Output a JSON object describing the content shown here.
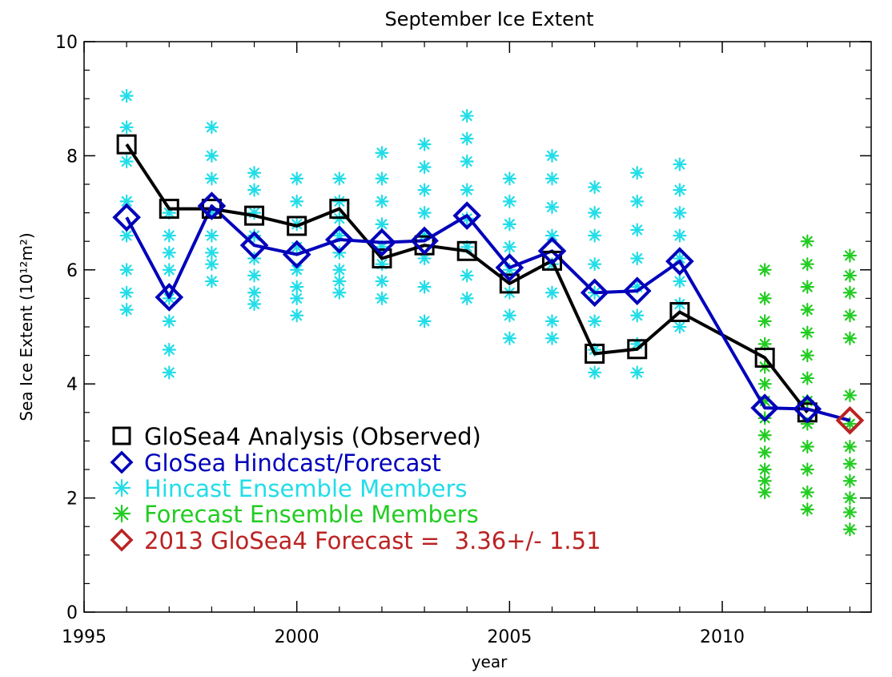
{
  "chart_data": {
    "type": "line",
    "title": "September Ice Extent",
    "xlabel": "year",
    "ylabel": "Sea Ice Extent (10¹²m²)",
    "xlim": [
      1995,
      2013.5
    ],
    "ylim": [
      0,
      10
    ],
    "x_ticks": [
      1995,
      2000,
      2005,
      2010
    ],
    "y_ticks": [
      0,
      2,
      4,
      6,
      8,
      10
    ],
    "grid": false,
    "legend_position": "bottom-left",
    "series": [
      {
        "name": "GloSea4 Analysis (Observed)",
        "color": "#000000",
        "marker": "square",
        "points": [
          [
            1996,
            8.2
          ],
          [
            1997,
            7.07
          ],
          [
            1998,
            7.07
          ],
          [
            1999,
            6.95
          ],
          [
            2000,
            6.77
          ],
          [
            2001,
            7.07
          ],
          [
            2002,
            6.2
          ],
          [
            2003,
            6.43
          ],
          [
            2004,
            6.33
          ],
          [
            2005,
            5.76
          ],
          [
            2006,
            6.16
          ],
          [
            2007,
            4.53
          ],
          [
            2008,
            4.61
          ],
          [
            2009,
            5.26
          ],
          [
            2011,
            4.46
          ],
          [
            2012,
            3.5
          ]
        ]
      },
      {
        "name": "GloSea Hindcast/Forecast",
        "color": "#0000bb",
        "marker": "diamond",
        "points": [
          [
            1996,
            6.92
          ],
          [
            1997,
            5.52
          ],
          [
            1998,
            7.12
          ],
          [
            1999,
            6.43
          ],
          [
            2000,
            6.27
          ],
          [
            2001,
            6.53
          ],
          [
            2002,
            6.48
          ],
          [
            2003,
            6.51
          ],
          [
            2004,
            6.95
          ],
          [
            2005,
            6.04
          ],
          [
            2006,
            6.33
          ],
          [
            2007,
            5.6
          ],
          [
            2008,
            5.63
          ],
          [
            2009,
            6.15
          ],
          [
            2011,
            3.58
          ],
          [
            2012,
            3.56
          ],
          [
            2013,
            3.36
          ]
        ]
      },
      {
        "name": "Hincast Ensemble Members",
        "color": "#22dde8",
        "marker": "asterisk",
        "points": [
          [
            1996,
            9.05
          ],
          [
            1996,
            8.5
          ],
          [
            1996,
            7.9
          ],
          [
            1996,
            7.2
          ],
          [
            1996,
            6.6
          ],
          [
            1996,
            6.0
          ],
          [
            1996,
            5.6
          ],
          [
            1996,
            5.3
          ],
          [
            1997,
            7.0
          ],
          [
            1997,
            6.6
          ],
          [
            1997,
            6.3
          ],
          [
            1997,
            6.0
          ],
          [
            1997,
            5.5
          ],
          [
            1997,
            5.1
          ],
          [
            1997,
            4.6
          ],
          [
            1997,
            4.2
          ],
          [
            1998,
            8.5
          ],
          [
            1998,
            8.0
          ],
          [
            1998,
            7.6
          ],
          [
            1998,
            7.0
          ],
          [
            1998,
            6.6
          ],
          [
            1998,
            6.3
          ],
          [
            1998,
            6.1
          ],
          [
            1998,
            5.8
          ],
          [
            1999,
            7.7
          ],
          [
            1999,
            7.4
          ],
          [
            1999,
            7.0
          ],
          [
            1999,
            6.6
          ],
          [
            1999,
            6.2
          ],
          [
            1999,
            5.9
          ],
          [
            1999,
            5.6
          ],
          [
            1999,
            5.4
          ],
          [
            2000,
            7.6
          ],
          [
            2000,
            7.2
          ],
          [
            2000,
            6.8
          ],
          [
            2000,
            6.4
          ],
          [
            2000,
            6.0
          ],
          [
            2000,
            5.7
          ],
          [
            2000,
            5.5
          ],
          [
            2000,
            5.2
          ],
          [
            2001,
            7.6
          ],
          [
            2001,
            7.2
          ],
          [
            2001,
            6.9
          ],
          [
            2001,
            6.6
          ],
          [
            2001,
            6.3
          ],
          [
            2001,
            6.0
          ],
          [
            2001,
            5.8
          ],
          [
            2001,
            5.6
          ],
          [
            2002,
            8.05
          ],
          [
            2002,
            7.6
          ],
          [
            2002,
            7.2
          ],
          [
            2002,
            6.8
          ],
          [
            2002,
            6.4
          ],
          [
            2002,
            6.1
          ],
          [
            2002,
            5.8
          ],
          [
            2002,
            5.5
          ],
          [
            2003,
            8.2
          ],
          [
            2003,
            7.8
          ],
          [
            2003,
            7.4
          ],
          [
            2003,
            7.0
          ],
          [
            2003,
            6.6
          ],
          [
            2003,
            6.2
          ],
          [
            2003,
            5.7
          ],
          [
            2003,
            5.1
          ],
          [
            2004,
            8.7
          ],
          [
            2004,
            8.3
          ],
          [
            2004,
            7.9
          ],
          [
            2004,
            7.4
          ],
          [
            2004,
            6.9
          ],
          [
            2004,
            6.4
          ],
          [
            2004,
            5.9
          ],
          [
            2004,
            5.5
          ],
          [
            2005,
            7.6
          ],
          [
            2005,
            7.2
          ],
          [
            2005,
            6.8
          ],
          [
            2005,
            6.4
          ],
          [
            2005,
            6.0
          ],
          [
            2005,
            5.6
          ],
          [
            2005,
            5.2
          ],
          [
            2005,
            4.8
          ],
          [
            2006,
            8.0
          ],
          [
            2006,
            7.6
          ],
          [
            2006,
            7.1
          ],
          [
            2006,
            6.6
          ],
          [
            2006,
            6.1
          ],
          [
            2006,
            5.6
          ],
          [
            2006,
            5.1
          ],
          [
            2006,
            4.8
          ],
          [
            2007,
            7.45
          ],
          [
            2007,
            7.0
          ],
          [
            2007,
            6.6
          ],
          [
            2007,
            6.1
          ],
          [
            2007,
            5.6
          ],
          [
            2007,
            5.1
          ],
          [
            2007,
            4.6
          ],
          [
            2007,
            4.2
          ],
          [
            2008,
            7.7
          ],
          [
            2008,
            7.2
          ],
          [
            2008,
            6.7
          ],
          [
            2008,
            6.2
          ],
          [
            2008,
            5.7
          ],
          [
            2008,
            5.2
          ],
          [
            2008,
            4.7
          ],
          [
            2008,
            4.2
          ],
          [
            2009,
            7.85
          ],
          [
            2009,
            7.4
          ],
          [
            2009,
            7.0
          ],
          [
            2009,
            6.6
          ],
          [
            2009,
            6.2
          ],
          [
            2009,
            5.8
          ],
          [
            2009,
            5.4
          ],
          [
            2009,
            5.0
          ]
        ]
      },
      {
        "name": "Forecast Ensemble Members",
        "color": "#22cc22",
        "marker": "asterisk",
        "points": [
          [
            2011,
            6.0
          ],
          [
            2011,
            5.5
          ],
          [
            2011,
            5.1
          ],
          [
            2011,
            4.7
          ],
          [
            2011,
            4.3
          ],
          [
            2011,
            4.0
          ],
          [
            2011,
            3.7
          ],
          [
            2011,
            3.4
          ],
          [
            2011,
            3.1
          ],
          [
            2011,
            2.8
          ],
          [
            2011,
            2.5
          ],
          [
            2011,
            2.3
          ],
          [
            2011,
            2.1
          ],
          [
            2012,
            6.5
          ],
          [
            2012,
            6.1
          ],
          [
            2012,
            5.7
          ],
          [
            2012,
            5.3
          ],
          [
            2012,
            4.9
          ],
          [
            2012,
            4.5
          ],
          [
            2012,
            4.1
          ],
          [
            2012,
            3.7
          ],
          [
            2012,
            3.3
          ],
          [
            2012,
            2.9
          ],
          [
            2012,
            2.5
          ],
          [
            2012,
            2.1
          ],
          [
            2012,
            1.8
          ],
          [
            2013,
            6.25
          ],
          [
            2013,
            5.9
          ],
          [
            2013,
            5.6
          ],
          [
            2013,
            5.2
          ],
          [
            2013,
            4.8
          ],
          [
            2013,
            3.8
          ],
          [
            2013,
            3.3
          ],
          [
            2013,
            2.9
          ],
          [
            2013,
            2.6
          ],
          [
            2013,
            2.3
          ],
          [
            2013,
            2.0
          ],
          [
            2013,
            1.75
          ],
          [
            2013,
            1.45
          ]
        ]
      },
      {
        "name": "2013 GloSea4 Forecast =  3.36+/- 1.51",
        "color": "#bb2222",
        "marker": "diamond",
        "points": [
          [
            2013,
            3.36
          ]
        ]
      }
    ]
  }
}
